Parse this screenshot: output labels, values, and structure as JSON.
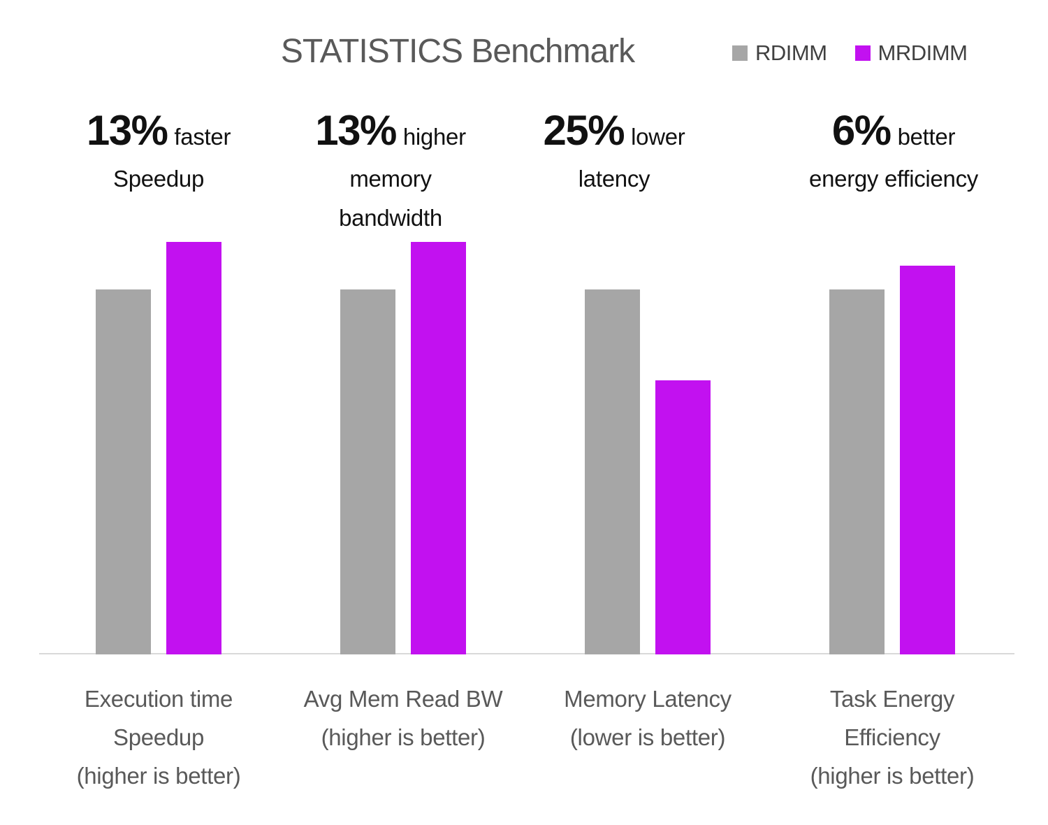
{
  "chart_data": {
    "type": "bar",
    "title": "STATISTICS Benchmark",
    "categories": [
      "Execution time Speedup (higher is better)",
      "Avg Mem Read BW (higher is better)",
      "Memory Latency (lower is better)",
      "Task Energy Efficiency (higher is better)"
    ],
    "category_label_lines": [
      [
        "Execution time",
        "Speedup",
        "(higher is better)"
      ],
      [
        "Avg Mem Read BW",
        "(higher is better)"
      ],
      [
        "Memory Latency",
        "(lower is better)"
      ],
      [
        "Task Energy",
        "Efficiency",
        "(higher is better)"
      ]
    ],
    "series": [
      {
        "name": "RDIMM",
        "color": "#a6a6a6",
        "values": [
          1.0,
          1.0,
          1.0,
          1.0
        ]
      },
      {
        "name": "MRDIMM",
        "color": "#c211f0",
        "values": [
          1.13,
          1.13,
          0.75,
          1.065
        ]
      }
    ],
    "annotations": [
      {
        "percent": "13%",
        "qualifier": "faster",
        "extra_lines": [
          "Speedup"
        ]
      },
      {
        "percent": "13%",
        "qualifier": "higher",
        "extra_lines": [
          "memory",
          "bandwidth"
        ]
      },
      {
        "percent": "25%",
        "qualifier": "lower",
        "extra_lines": [
          "latency"
        ]
      },
      {
        "percent": "6%",
        "qualifier": "better",
        "extra_lines": [
          "energy efficiency"
        ]
      }
    ],
    "ylim": [
      0,
      1.25
    ],
    "grid": false,
    "legend_position": "top-right",
    "xlabel": "",
    "ylabel": "",
    "colors": {
      "background": "#ffffff",
      "axis_line": "#d9d9d9",
      "title_text": "#595959",
      "category_text": "#595959",
      "annotation_text": "#111111",
      "legend_text": "#404040"
    }
  }
}
